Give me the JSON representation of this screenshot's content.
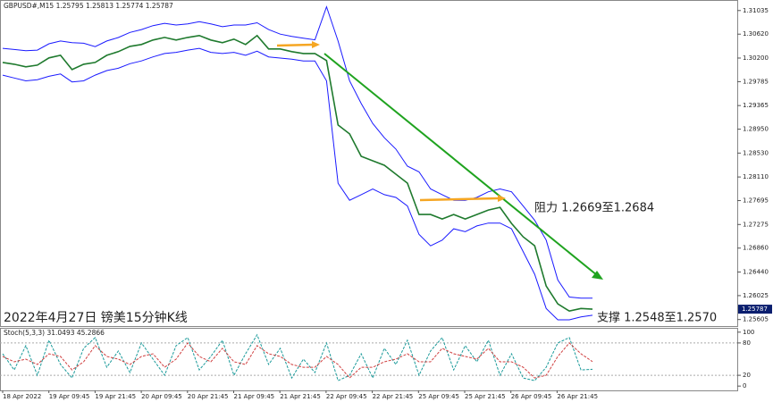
{
  "chart_data": [
    {
      "type": "line",
      "title": "GBPUSD#,M15  1.25795 1.25813 1.25774 1.25787",
      "caption": "2022年4月27日 镑美15分钟K线",
      "annotations": [
        "阻力 1.2669至1.2684",
        "支撑 1.2548至1.2570"
      ],
      "last_price": 1.25787,
      "ylim": [
        1.2549,
        1.3122
      ],
      "yticks": [
        1.31035,
        {
          "value": 1.3062,
          "label": "1.30620"
        },
        {
          "value": 1.302,
          "label": "1.30200"
        },
        1.29785,
        1.29365,
        {
          "value": 1.2895,
          "label": "1.28950"
        },
        {
          "value": 1.2853,
          "label": "1.28530"
        },
        {
          "value": 1.2811,
          "label": "1.28110"
        },
        1.27695,
        1.27275,
        {
          "value": 1.2686,
          "label": "1.26860"
        },
        {
          "value": 1.2644,
          "label": "1.26440"
        },
        1.26025,
        1.25605
      ],
      "x_tick_labels": [
        "18 Apr 2022",
        "19 Apr 09:45",
        "19 Apr 21:45",
        "20 Apr 09:45",
        "20 Apr 21:45",
        "21 Apr 09:45",
        "21 Apr 21:45",
        "22 Apr 09:45",
        "22 Apr 21:45",
        "25 Apr 09:45",
        "25 Apr 21:45",
        "26 Apr 09:45",
        "26 Apr 21:45"
      ],
      "series": [
        {
          "color": "#1f7a2e",
          "values": [
            1.30123,
            1.30092,
            1.30045,
            1.30076,
            1.30202,
            1.30249,
            1.29997,
            1.30092,
            1.30123,
            1.30249,
            1.30312,
            1.30406,
            1.30438,
            1.30516,
            1.30563,
            1.30516,
            1.30563,
            1.30595,
            1.30516,
            1.30469,
            1.30532,
            1.30438,
            1.30595,
            1.30359,
            1.30359,
            1.30312,
            1.3028,
            1.3028,
            1.30155,
            1.29023,
            1.28866,
            1.28473,
            1.28394,
            1.28315,
            1.28158,
            1.28001,
            1.27451,
            1.27451,
            1.27372,
            1.27451,
            1.27372,
            1.27451,
            1.27529,
            1.27577,
            1.27294,
            1.27058,
            1.26901,
            1.26193,
            1.25879,
            1.25753,
            1.258,
            1.25787
          ]
        },
        {
          "color": "#1a1aff",
          "values": [
            1.3037,
            1.3035,
            1.3033,
            1.3034,
            1.3045,
            1.305,
            1.3047,
            1.3046,
            1.304,
            1.305,
            1.3056,
            1.3065,
            1.307,
            1.3077,
            1.3081,
            1.3078,
            1.308,
            1.3084,
            1.308,
            1.3075,
            1.3078,
            1.3078,
            1.3082,
            1.307,
            1.3062,
            1.3058,
            1.3055,
            1.3052,
            1.311,
            1.305,
            1.298,
            1.294,
            1.2905,
            1.288,
            1.286,
            1.283,
            1.282,
            1.279,
            1.278,
            1.277,
            1.277,
            1.2775,
            1.2785,
            1.279,
            1.2785,
            1.276,
            1.2735,
            1.27,
            1.263,
            1.26,
            1.2598,
            1.2598
          ]
        },
        {
          "color": "#1a1aff",
          "values": [
            1.299,
            1.2985,
            1.298,
            1.2982,
            1.2988,
            1.2992,
            1.2978,
            1.298,
            1.299,
            1.2998,
            1.3002,
            1.301,
            1.3015,
            1.3022,
            1.3028,
            1.303,
            1.3034,
            1.3037,
            1.303,
            1.3028,
            1.303,
            1.3025,
            1.3032,
            1.3022,
            1.302,
            1.3018,
            1.3015,
            1.3015,
            1.298,
            1.28,
            1.277,
            1.278,
            1.279,
            1.278,
            1.2775,
            1.276,
            1.271,
            1.269,
            1.27,
            1.272,
            1.2715,
            1.2725,
            1.273,
            1.273,
            1.272,
            1.268,
            1.264,
            1.258,
            1.256,
            1.256,
            1.2565,
            1.2568
          ]
        }
      ]
    },
    {
      "type": "line",
      "title": "Stoch(5,3,3) 31.0493 45.2866",
      "ylim": [
        -8,
        108
      ],
      "yticks": [
        0,
        20,
        80,
        100
      ],
      "series": [
        {
          "color": "#1a9a9a",
          "values": [
            60,
            30,
            75,
            20,
            85,
            40,
            15,
            70,
            90,
            35,
            65,
            25,
            80,
            50,
            20,
            75,
            90,
            30,
            55,
            85,
            20,
            60,
            95,
            40,
            70,
            15,
            50,
            25,
            80,
            10,
            20,
            60,
            15,
            70,
            40,
            85,
            20,
            65,
            90,
            30,
            75,
            45,
            85,
            20,
            60,
            15,
            10,
            35,
            80,
            90,
            30,
            31.0493
          ]
        },
        {
          "color": "#d04040",
          "values": [
            55,
            45,
            50,
            40,
            60,
            55,
            30,
            45,
            75,
            55,
            50,
            40,
            55,
            60,
            35,
            50,
            80,
            55,
            45,
            70,
            45,
            40,
            75,
            60,
            55,
            40,
            35,
            35,
            55,
            40,
            15,
            35,
            35,
            45,
            50,
            60,
            45,
            45,
            70,
            60,
            55,
            50,
            70,
            45,
            45,
            35,
            15,
            20,
            55,
            80,
            60,
            45.2866
          ]
        }
      ]
    }
  ]
}
